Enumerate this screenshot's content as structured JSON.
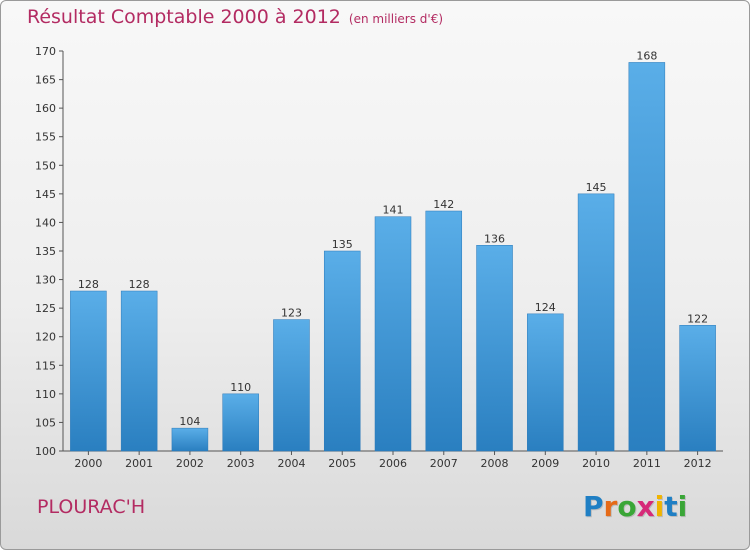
{
  "chart_data": {
    "type": "bar",
    "title": "Résultat Comptable 2000 à 2012",
    "subtitle": "(en milliers d'€)",
    "categories": [
      "2000",
      "2001",
      "2002",
      "2003",
      "2004",
      "2005",
      "2006",
      "2007",
      "2008",
      "2009",
      "2010",
      "2011",
      "2012"
    ],
    "values": [
      128,
      128,
      104,
      110,
      123,
      135,
      141,
      142,
      136,
      124,
      145,
      168,
      122
    ],
    "ylim": [
      100,
      170
    ],
    "yticks": [
      100,
      105,
      110,
      115,
      120,
      125,
      130,
      135,
      140,
      145,
      150,
      155,
      160,
      165,
      170
    ],
    "xlabel": "",
    "ylabel": "",
    "grid": false,
    "bar_color": "#3e9ee0"
  },
  "commune": "PLOURAC'H",
  "logo": {
    "letters": [
      "P",
      "r",
      "o",
      "x",
      "i",
      "t",
      "i"
    ],
    "colors": [
      "#1f7fc4",
      "#e56a17",
      "#3aa637",
      "#d62a78",
      "#f0b400",
      "#1f7fc4",
      "#3aa637"
    ]
  },
  "colors": {
    "accent": "#b32b62",
    "bar": "#3e9ee0"
  }
}
